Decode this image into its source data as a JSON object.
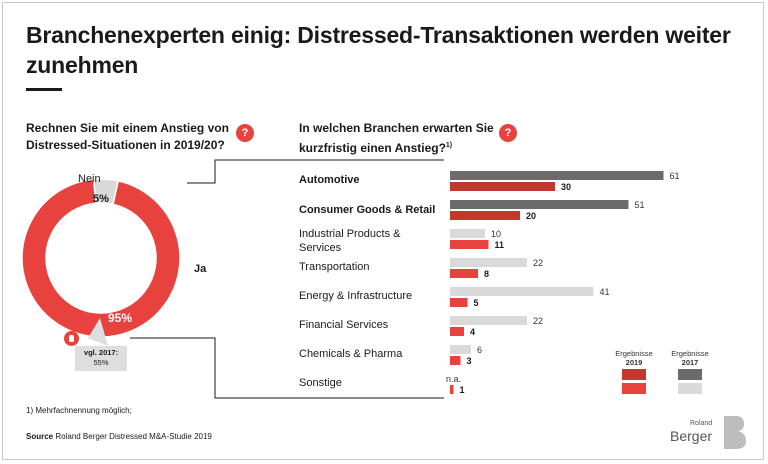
{
  "header": {
    "title": "Branchenexperten einig: Distressed-Transaktionen werden weiter zunehmen"
  },
  "left_panel": {
    "question": "Rechnen Sie mit einem Anstieg von Distressed-Situationen in 2019/20?",
    "badge": "?",
    "callout_line1": "vgl. 2017:",
    "callout_line2": "55%"
  },
  "right_panel": {
    "question": "In welchen Branchen erwarten Sie kurzfristig einen Anstieg?",
    "question_sup": "1)",
    "badge": "?",
    "legend": {
      "label_2019_top": "Ergebnisse",
      "label_2019_year": "2019",
      "label_2017_top": "Ergebnisse",
      "label_2017_year": "2017"
    }
  },
  "footer": {
    "footnote": "1) Mehrfachnennung möglich;",
    "source_bold": "Source",
    "source_text": "Roland Berger Distressed M&A-Studie 2019",
    "logo_small": "Roland",
    "logo_big": "Berger"
  },
  "colors": {
    "red_dark": "#c0392b",
    "red_light": "#e8423f",
    "gray_dark": "#6b6b6b",
    "gray_light": "#d9d9d9"
  },
  "chart_data": [
    {
      "type": "pie",
      "variant": "donut",
      "categories": [
        "Ja",
        "Nein"
      ],
      "values": [
        95,
        5
      ],
      "value_labels": [
        "95%",
        "5%"
      ],
      "colors": [
        "#e8423f",
        "#d9d9d9"
      ]
    },
    {
      "type": "bar",
      "orientation": "horizontal",
      "categories": [
        "Automotive",
        "Consumer Goods & Retail",
        "Industrial Products & Services",
        "Transportation",
        "Energy & Infrastructure",
        "Financial Services",
        "Chemicals & Pharma",
        "Sonstige"
      ],
      "category_lines": [
        [
          "Automotive"
        ],
        [
          "Consumer Goods & Retail"
        ],
        [
          "Industrial Products &",
          "Services"
        ],
        [
          "Transportation"
        ],
        [
          "Energy & Infrastructure"
        ],
        [
          "Financial Services"
        ],
        [
          "Chemicals & Pharma"
        ],
        [
          "Sonstige"
        ]
      ],
      "bold_categories": [
        true,
        true,
        false,
        false,
        false,
        false,
        false,
        false
      ],
      "series": [
        {
          "name": "2017",
          "values": [
            61,
            51,
            10,
            22,
            41,
            22,
            6,
            null
          ],
          "labels": [
            "61",
            "51",
            "10",
            "22",
            "41",
            "22",
            "6",
            "n.a."
          ]
        },
        {
          "name": "2019",
          "values": [
            30,
            20,
            11,
            8,
            5,
            4,
            3,
            1
          ],
          "labels": [
            "30",
            "20",
            "11",
            "8",
            "5",
            "4",
            "3",
            "1"
          ]
        }
      ]
    }
  ]
}
